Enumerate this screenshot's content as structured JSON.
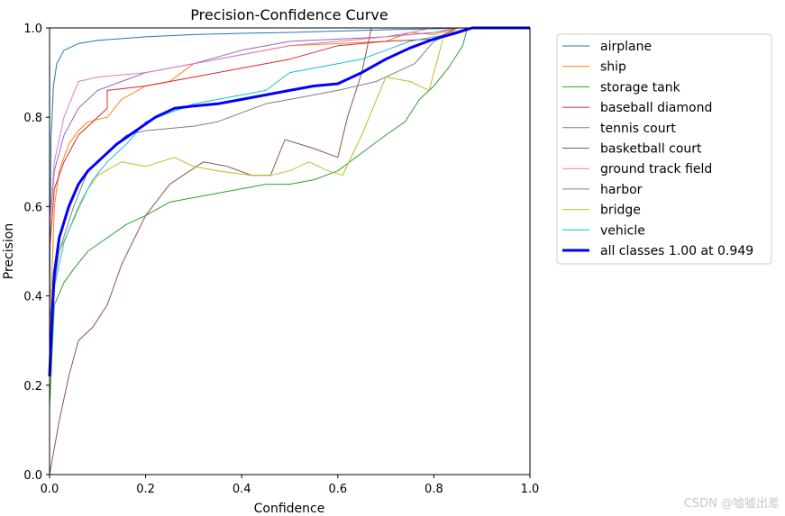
{
  "chart_data": {
    "type": "line",
    "title": "Precision-Confidence Curve",
    "xlabel": "Confidence",
    "ylabel": "Precision",
    "xlim": [
      0,
      1
    ],
    "ylim": [
      0,
      1
    ],
    "xticks": [
      "0.0",
      "0.2",
      "0.4",
      "0.6",
      "0.8",
      "1.0"
    ],
    "yticks": [
      "0.0",
      "0.2",
      "0.4",
      "0.6",
      "0.8",
      "1.0"
    ],
    "grid": false,
    "legend_position": "outside-right",
    "series": [
      {
        "name": "airplane",
        "color": "#1f77b4",
        "width": 1,
        "points": [
          [
            0,
            0.35
          ],
          [
            0.003,
            0.75
          ],
          [
            0.008,
            0.87
          ],
          [
            0.015,
            0.92
          ],
          [
            0.03,
            0.95
          ],
          [
            0.06,
            0.965
          ],
          [
            0.1,
            0.972
          ],
          [
            0.2,
            0.98
          ],
          [
            0.3,
            0.985
          ],
          [
            0.4,
            0.988
          ],
          [
            0.5,
            0.99
          ],
          [
            0.6,
            0.993
          ],
          [
            0.7,
            0.996
          ],
          [
            0.8,
            0.998
          ],
          [
            0.86,
            1.0
          ],
          [
            1.0,
            1.0
          ]
        ]
      },
      {
        "name": "ship",
        "color": "#ff7f0e",
        "width": 1,
        "points": [
          [
            0,
            0.3
          ],
          [
            0.01,
            0.6
          ],
          [
            0.02,
            0.68
          ],
          [
            0.04,
            0.74
          ],
          [
            0.06,
            0.77
          ],
          [
            0.08,
            0.79
          ],
          [
            0.12,
            0.8
          ],
          [
            0.15,
            0.84
          ],
          [
            0.2,
            0.87
          ],
          [
            0.25,
            0.88
          ],
          [
            0.3,
            0.92
          ],
          [
            0.35,
            0.93
          ],
          [
            0.4,
            0.94
          ],
          [
            0.5,
            0.96
          ],
          [
            0.6,
            0.965
          ],
          [
            0.7,
            0.97
          ],
          [
            0.75,
            0.99
          ],
          [
            0.8,
            0.985
          ],
          [
            0.85,
            1.0
          ],
          [
            1.0,
            1.0
          ]
        ]
      },
      {
        "name": "storage tank",
        "color": "#2ca02c",
        "width": 1,
        "points": [
          [
            0,
            0.15
          ],
          [
            0.01,
            0.38
          ],
          [
            0.03,
            0.43
          ],
          [
            0.05,
            0.46
          ],
          [
            0.08,
            0.5
          ],
          [
            0.12,
            0.53
          ],
          [
            0.16,
            0.56
          ],
          [
            0.2,
            0.58
          ],
          [
            0.25,
            0.61
          ],
          [
            0.3,
            0.62
          ],
          [
            0.35,
            0.63
          ],
          [
            0.4,
            0.64
          ],
          [
            0.45,
            0.65
          ],
          [
            0.5,
            0.65
          ],
          [
            0.55,
            0.66
          ],
          [
            0.6,
            0.68
          ],
          [
            0.65,
            0.72
          ],
          [
            0.7,
            0.76
          ],
          [
            0.74,
            0.79
          ],
          [
            0.77,
            0.84
          ],
          [
            0.8,
            0.87
          ],
          [
            0.83,
            0.91
          ],
          [
            0.86,
            0.96
          ],
          [
            0.87,
            1.0
          ],
          [
            1.0,
            1.0
          ]
        ]
      },
      {
        "name": "baseball diamond",
        "color": "#d62728",
        "width": 1,
        "points": [
          [
            0,
            0.5
          ],
          [
            0.01,
            0.64
          ],
          [
            0.03,
            0.7
          ],
          [
            0.06,
            0.76
          ],
          [
            0.09,
            0.79
          ],
          [
            0.12,
            0.82
          ],
          [
            0.12,
            0.86
          ],
          [
            0.2,
            0.87
          ],
          [
            0.3,
            0.89
          ],
          [
            0.4,
            0.91
          ],
          [
            0.5,
            0.93
          ],
          [
            0.6,
            0.96
          ],
          [
            0.7,
            0.97
          ],
          [
            0.8,
            0.975
          ],
          [
            0.85,
            1.0
          ],
          [
            1.0,
            1.0
          ]
        ]
      },
      {
        "name": "tennis court",
        "color": "#9467bd",
        "width": 1,
        "points": [
          [
            0,
            0.55
          ],
          [
            0.01,
            0.68
          ],
          [
            0.03,
            0.76
          ],
          [
            0.06,
            0.82
          ],
          [
            0.1,
            0.86
          ],
          [
            0.15,
            0.88
          ],
          [
            0.2,
            0.9
          ],
          [
            0.3,
            0.92
          ],
          [
            0.4,
            0.95
          ],
          [
            0.5,
            0.97
          ],
          [
            0.6,
            0.975
          ],
          [
            0.7,
            0.98
          ],
          [
            0.8,
            0.99
          ],
          [
            0.85,
            1.0
          ],
          [
            1.0,
            1.0
          ]
        ]
      },
      {
        "name": "basketball court",
        "color": "#8c564b",
        "width": 1,
        "points": [
          [
            0,
            0.0
          ],
          [
            0.02,
            0.12
          ],
          [
            0.04,
            0.22
          ],
          [
            0.06,
            0.3
          ],
          [
            0.09,
            0.33
          ],
          [
            0.12,
            0.38
          ],
          [
            0.15,
            0.47
          ],
          [
            0.2,
            0.58
          ],
          [
            0.25,
            0.65
          ],
          [
            0.32,
            0.7
          ],
          [
            0.37,
            0.69
          ],
          [
            0.42,
            0.67
          ],
          [
            0.46,
            0.67
          ],
          [
            0.49,
            0.75
          ],
          [
            0.55,
            0.73
          ],
          [
            0.6,
            0.71
          ],
          [
            0.62,
            0.8
          ],
          [
            0.65,
            0.9
          ],
          [
            0.67,
            1.0
          ],
          [
            1.0,
            1.0
          ]
        ]
      },
      {
        "name": "ground track field",
        "color": "#e377c2",
        "width": 1,
        "points": [
          [
            0,
            0.55
          ],
          [
            0.01,
            0.7
          ],
          [
            0.03,
            0.8
          ],
          [
            0.06,
            0.88
          ],
          [
            0.1,
            0.89
          ],
          [
            0.2,
            0.9
          ],
          [
            0.3,
            0.92
          ],
          [
            0.4,
            0.94
          ],
          [
            0.5,
            0.96
          ],
          [
            0.6,
            0.97
          ],
          [
            0.7,
            0.98
          ],
          [
            0.75,
            0.99
          ],
          [
            0.8,
            1.0
          ],
          [
            1.0,
            1.0
          ]
        ]
      },
      {
        "name": "harbor",
        "color": "#7f7f7f",
        "width": 1,
        "points": [
          [
            0,
            0.35
          ],
          [
            0.02,
            0.5
          ],
          [
            0.05,
            0.6
          ],
          [
            0.08,
            0.68
          ],
          [
            0.12,
            0.72
          ],
          [
            0.16,
            0.76
          ],
          [
            0.2,
            0.77
          ],
          [
            0.3,
            0.78
          ],
          [
            0.35,
            0.79
          ],
          [
            0.4,
            0.81
          ],
          [
            0.45,
            0.83
          ],
          [
            0.5,
            0.84
          ],
          [
            0.55,
            0.85
          ],
          [
            0.6,
            0.86
          ],
          [
            0.64,
            0.87
          ],
          [
            0.68,
            0.88
          ],
          [
            0.72,
            0.9
          ],
          [
            0.76,
            0.92
          ],
          [
            0.8,
            0.97
          ],
          [
            0.84,
            0.99
          ],
          [
            0.87,
            1.0
          ],
          [
            1.0,
            1.0
          ]
        ]
      },
      {
        "name": "bridge",
        "color": "#bcbd22",
        "width": 1,
        "points": [
          [
            0,
            0.4
          ],
          [
            0.02,
            0.5
          ],
          [
            0.05,
            0.57
          ],
          [
            0.08,
            0.64
          ],
          [
            0.1,
            0.67
          ],
          [
            0.15,
            0.7
          ],
          [
            0.2,
            0.69
          ],
          [
            0.26,
            0.71
          ],
          [
            0.3,
            0.69
          ],
          [
            0.35,
            0.68
          ],
          [
            0.42,
            0.67
          ],
          [
            0.46,
            0.67
          ],
          [
            0.5,
            0.68
          ],
          [
            0.54,
            0.7
          ],
          [
            0.58,
            0.68
          ],
          [
            0.61,
            0.67
          ],
          [
            0.65,
            0.76
          ],
          [
            0.7,
            0.89
          ],
          [
            0.75,
            0.88
          ],
          [
            0.79,
            0.86
          ],
          [
            0.82,
            0.98
          ],
          [
            0.85,
            1.0
          ],
          [
            1.0,
            1.0
          ]
        ]
      },
      {
        "name": "vehicle",
        "color": "#17becf",
        "width": 1,
        "points": [
          [
            0,
            0.25
          ],
          [
            0.01,
            0.42
          ],
          [
            0.03,
            0.52
          ],
          [
            0.06,
            0.6
          ],
          [
            0.09,
            0.66
          ],
          [
            0.12,
            0.7
          ],
          [
            0.16,
            0.74
          ],
          [
            0.2,
            0.79
          ],
          [
            0.25,
            0.81
          ],
          [
            0.3,
            0.83
          ],
          [
            0.35,
            0.84
          ],
          [
            0.4,
            0.85
          ],
          [
            0.45,
            0.86
          ],
          [
            0.5,
            0.9
          ],
          [
            0.55,
            0.91
          ],
          [
            0.6,
            0.92
          ],
          [
            0.65,
            0.93
          ],
          [
            0.7,
            0.95
          ],
          [
            0.75,
            0.97
          ],
          [
            0.8,
            0.98
          ],
          [
            0.85,
            0.99
          ],
          [
            0.88,
            1.0
          ],
          [
            1.0,
            1.0
          ]
        ]
      },
      {
        "name": "all classes 1.00 at 0.949",
        "color": "#0000ff",
        "width": 3,
        "points": [
          [
            0,
            0.22
          ],
          [
            0.005,
            0.35
          ],
          [
            0.01,
            0.45
          ],
          [
            0.02,
            0.53
          ],
          [
            0.04,
            0.6
          ],
          [
            0.06,
            0.65
          ],
          [
            0.08,
            0.68
          ],
          [
            0.1,
            0.7
          ],
          [
            0.14,
            0.74
          ],
          [
            0.18,
            0.77
          ],
          [
            0.22,
            0.8
          ],
          [
            0.26,
            0.82
          ],
          [
            0.3,
            0.825
          ],
          [
            0.35,
            0.83
          ],
          [
            0.4,
            0.84
          ],
          [
            0.45,
            0.85
          ],
          [
            0.5,
            0.86
          ],
          [
            0.55,
            0.87
          ],
          [
            0.6,
            0.875
          ],
          [
            0.65,
            0.9
          ],
          [
            0.7,
            0.93
          ],
          [
            0.75,
            0.955
          ],
          [
            0.8,
            0.975
          ],
          [
            0.85,
            0.99
          ],
          [
            0.88,
            1.0
          ],
          [
            1.0,
            1.0
          ]
        ]
      }
    ]
  },
  "watermark": "CSDN @嘘嘘出差"
}
